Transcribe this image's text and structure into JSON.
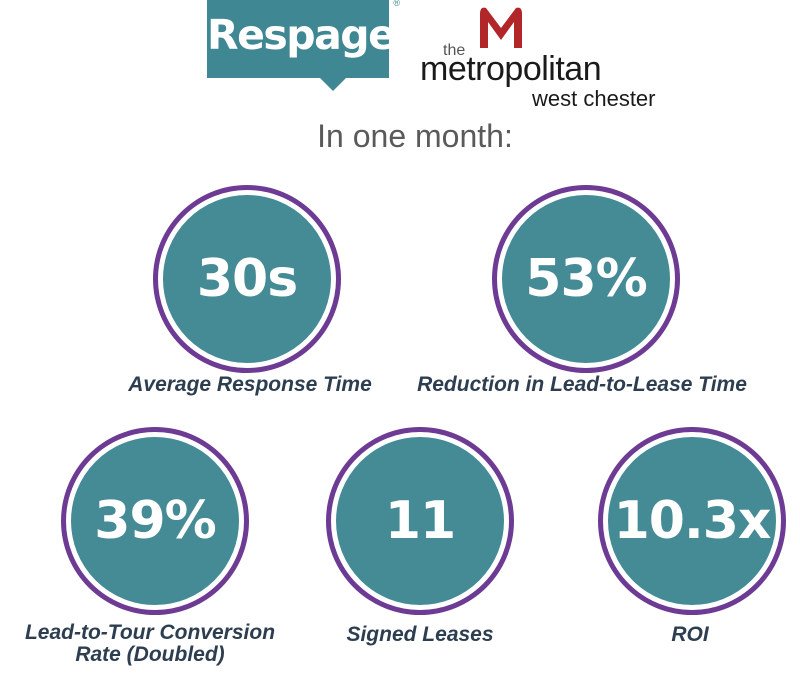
{
  "logos": {
    "respage": {
      "text": "Respage",
      "reg_mark": "®"
    },
    "metropolitan": {
      "the": "the",
      "name": "metropolitan",
      "sub": "west chester"
    }
  },
  "headline": "In one month:",
  "stats": [
    {
      "value": "30s",
      "label": "Average Response Time"
    },
    {
      "value": "53%",
      "label": "Reduction in Lead-to-Lease Time"
    },
    {
      "value": "39%",
      "label": "Lead-to-Tour Conversion Rate (Doubled)"
    },
    {
      "value": "11",
      "label": "Signed Leases"
    },
    {
      "value": "10.3x",
      "label": "ROI"
    }
  ],
  "colors": {
    "teal": "#448b95",
    "purple": "#6d3a94",
    "label": "#2d3e50",
    "metro_red": "#b2262a"
  }
}
